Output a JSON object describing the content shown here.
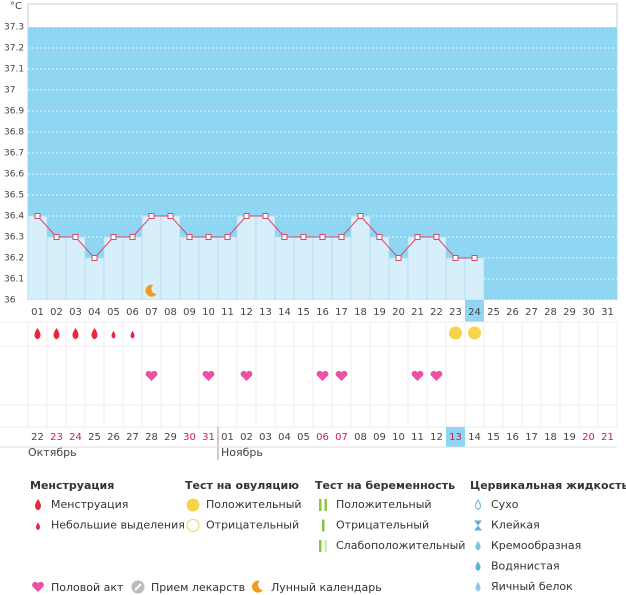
{
  "chart_data": {
    "type": "line",
    "y_unit": "°C",
    "x": [
      "01",
      "02",
      "03",
      "04",
      "05",
      "06",
      "07",
      "08",
      "09",
      "10",
      "11",
      "12",
      "13",
      "14",
      "15",
      "16",
      "17",
      "18",
      "19",
      "20",
      "21",
      "22",
      "23",
      "24",
      "25",
      "26",
      "27",
      "28",
      "29",
      "30",
      "31"
    ],
    "series": [
      {
        "color": "#d9486a",
        "values": [
          36.4,
          36.3,
          36.3,
          36.2,
          36.3,
          36.3,
          36.4,
          36.4,
          36.3,
          36.3,
          36.3,
          36.4,
          36.4,
          36.3,
          36.3,
          36.3,
          36.3,
          36.4,
          36.3,
          36.2,
          36.3,
          36.3,
          36.2,
          36.2,
          null,
          null,
          null,
          null,
          null,
          null,
          null
        ]
      }
    ],
    "ylim": [
      36,
      37.3
    ],
    "yticks": [
      36,
      36.1,
      36.2,
      36.3,
      36.4,
      36.5,
      36.6,
      36.7,
      36.8,
      36.9,
      37,
      37.1,
      37.2,
      37.3
    ],
    "menstruation": [
      "01",
      "02",
      "03",
      "04"
    ],
    "spotting": [
      "05",
      "06"
    ],
    "ovulation_positive": [
      "23",
      "24"
    ],
    "intercourse": [
      "07",
      "10",
      "12",
      "16",
      "17",
      "21",
      "22"
    ],
    "lunar": [
      "07"
    ],
    "dates": [
      "22",
      "23",
      "24",
      "25",
      "26",
      "27",
      "28",
      "29",
      "30",
      "31",
      "01",
      "02",
      "03",
      "04",
      "05",
      "06",
      "07",
      "08",
      "09",
      "10",
      "11",
      "12",
      "13",
      "14",
      "15",
      "16",
      "17",
      "18",
      "19",
      "20",
      "21"
    ],
    "date_colors": [
      "#444",
      "#d01c4c",
      "#d01c4c",
      "#444",
      "#444",
      "#444",
      "#444",
      "#444",
      "#d01c4c",
      "#d01c4c",
      "#444",
      "#444",
      "#444",
      "#444",
      "#444",
      "#d01c4c",
      "#d01c4c",
      "#444",
      "#444",
      "#444",
      "#444",
      "#444",
      "#d01c4c",
      "#444",
      "#444",
      "#444",
      "#444",
      "#444",
      "#444",
      "#d01c4c",
      "#d01c4c"
    ],
    "months": [
      "Октябрь",
      "Ноябрь"
    ]
  },
  "legend": {
    "sections": [
      {
        "title": "Менструация",
        "items": [
          "Менструация",
          "Небольшие выделения"
        ]
      },
      {
        "title": "Тест на овуляцию",
        "items": [
          "Положительный",
          "Отрицательный"
        ]
      },
      {
        "title": "Тест на беременность",
        "items": [
          "Положительный",
          "Отрицательный",
          "Слабоположительный"
        ]
      },
      {
        "title": "Цервикальная жидкость",
        "items": [
          "Сухо",
          "Клейкая",
          "Кремообразная",
          "Водянистая",
          "Яичный белок"
        ]
      }
    ],
    "bottom": [
      "Половой акт",
      "Прием лекарств",
      "Лунный календарь"
    ]
  }
}
